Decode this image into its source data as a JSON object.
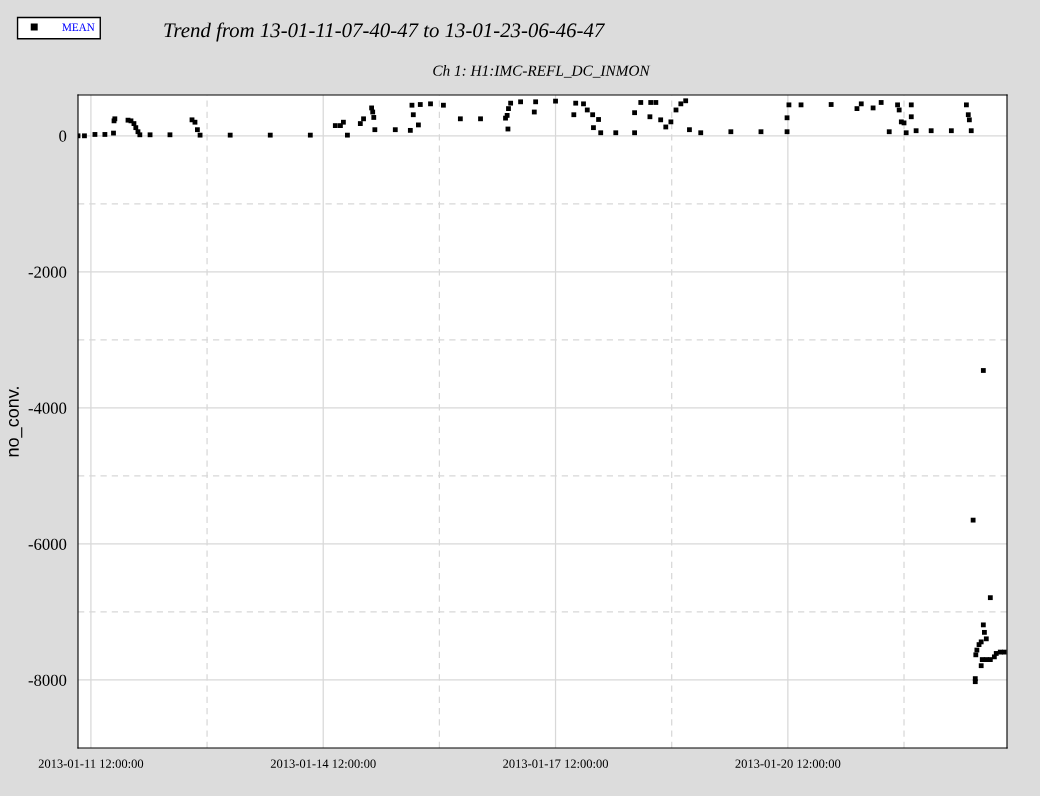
{
  "chart_data": {
    "type": "scatter",
    "title": "Trend from 13-01-11-07-40-47 to 13-01-23-06-46-47",
    "subtitle": "Ch 1: H1:IMC-REFL_DC_INMON",
    "ylabel": "no_conv.",
    "xlim": [
      "2013-01-11T08:00",
      "2013-01-23T07:55"
    ],
    "xticks": [
      {
        "value": "2013-01-11T12:00",
        "label": "2013-01-11 12:00:00"
      },
      {
        "value": "2013-01-13T00:00",
        "label": null
      },
      {
        "value": "2013-01-14T12:00",
        "label": "2013-01-14 12:00:00"
      },
      {
        "value": "2013-01-16T00:00",
        "label": null
      },
      {
        "value": "2013-01-17T12:00",
        "label": "2013-01-17 12:00:00"
      },
      {
        "value": "2013-01-19T00:00",
        "label": null
      },
      {
        "value": "2013-01-20T12:00",
        "label": "2013-01-20 12:00:00"
      },
      {
        "value": "2013-01-22T00:00",
        "label": null
      }
    ],
    "ylim": [
      -9000,
      600
    ],
    "yticks": [
      {
        "value": -8000,
        "label": "-8000"
      },
      {
        "value": -7000,
        "label": null
      },
      {
        "value": -6000,
        "label": "-6000"
      },
      {
        "value": -5000,
        "label": null
      },
      {
        "value": -4000,
        "label": "-4000"
      },
      {
        "value": -3000,
        "label": null
      },
      {
        "value": -2000,
        "label": "-2000"
      },
      {
        "value": -1000,
        "label": null
      },
      0
    ],
    "grid": true,
    "legend": "top left",
    "marker": "square",
    "series": [
      {
        "name": "MEAN",
        "color": "#000000",
        "x": [
          "2013-01-11T08:00",
          "2013-01-11T10:00",
          "2013-01-11T13:15",
          "2013-01-11T16:20",
          "2013-01-11T19:10",
          "2013-01-11T19:25",
          "2013-01-11T19:00",
          "2013-01-11T23:30",
          "2013-01-12T00:25",
          "2013-01-12T01:20",
          "2013-01-12T01:55",
          "2013-01-12T02:35",
          "2013-01-12T03:10",
          "2013-01-12T06:20",
          "2013-01-12T12:30",
          "2013-01-12T19:20",
          "2013-01-12T20:15",
          "2013-01-12T21:00",
          "2013-01-12T21:50",
          "2013-01-13T07:10",
          "2013-01-13T19:35",
          "2013-01-14T08:00",
          "2013-01-14T15:45",
          "2013-01-14T17:20",
          "2013-01-14T18:15",
          "2013-01-14T19:30",
          "2013-01-14T23:30",
          "2013-01-15T00:30",
          "2013-01-15T03:00",
          "2013-01-15T03:20",
          "2013-01-15T03:40",
          "2013-01-15T04:00",
          "2013-01-15T10:20",
          "2013-01-15T15:00",
          "2013-01-15T15:30",
          "2013-01-15T15:55",
          "2013-01-15T17:30",
          "2013-01-15T18:05",
          "2013-01-15T21:15",
          "2013-01-16T01:15",
          "2013-01-16T06:30",
          "2013-01-16T12:45",
          "2013-01-16T20:30",
          "2013-01-16T21:00",
          "2013-01-16T21:15",
          "2013-01-16T21:25",
          "2013-01-16T22:05",
          "2013-01-17T01:10",
          "2013-01-17T05:25",
          "2013-01-17T05:50",
          "2013-01-17T12:00",
          "2013-01-17T17:40",
          "2013-01-17T18:15",
          "2013-01-17T20:40",
          "2013-01-17T21:50",
          "2013-01-17T23:30",
          "2013-01-17T23:45",
          "2013-01-18T01:20",
          "2013-01-18T02:00",
          "2013-01-18T06:40",
          "2013-01-18T12:30",
          "2013-01-18T12:30",
          "2013-01-18T14:25",
          "2013-01-18T17:30",
          "2013-01-18T17:15",
          "2013-01-18T19:05",
          "2013-01-18T20:35",
          "2013-01-18T22:10",
          "2013-01-18T23:45",
          "2013-01-19T01:20",
          "2013-01-19T02:50",
          "2013-01-19T04:20",
          "2013-01-19T05:30",
          "2013-01-19T09:00",
          "2013-01-19T18:20",
          "2013-01-20T03:40",
          "2013-01-20T11:45",
          "2013-01-20T11:45",
          "2013-01-20T12:20",
          "2013-01-20T16:05",
          "2013-01-21T01:25",
          "2013-01-21T10:45",
          "2013-01-21T09:25",
          "2013-01-21T14:25",
          "2013-01-21T16:55",
          "2013-01-21T19:25",
          "2013-01-21T22:00",
          "2013-01-21T22:30",
          "2013-01-21T23:10",
          "2013-01-22T00:00",
          "2013-01-22T00:40",
          "2013-01-22T02:15",
          "2013-01-22T02:15",
          "2013-01-22T03:45",
          "2013-01-22T08:25",
          "2013-01-22T14:40",
          "2013-01-22T19:20",
          "2013-01-22T19:55",
          "2013-01-22T20:15",
          "2013-01-22T20:50",
          "2013-01-22T21:25",
          "2013-01-22T22:05",
          "2013-01-22T22:05",
          "2013-01-22T22:15",
          "2013-01-22T22:35",
          "2013-01-22T23:15",
          "2013-01-22T23:55",
          "2013-01-22T23:55",
          "2013-01-23T00:15",
          "2013-01-23T00:35",
          "2013-01-23T00:35",
          "2013-01-23T00:55",
          "2013-01-23T01:30",
          "2013-01-23T01:30",
          "2013-01-23T02:45",
          "2013-01-23T02:45",
          "2013-01-23T04:00",
          "2013-01-23T04:35",
          "2013-01-23T05:50",
          "2013-01-23T07:05"
        ],
        "values": [
          0,
          0,
          20,
          20,
          220,
          250,
          40,
          230,
          220,
          180,
          120,
          60,
          15,
          15,
          15,
          235,
          200,
          90,
          10,
          10,
          10,
          10,
          150,
          150,
          200,
          10,
          180,
          250,
          410,
          350,
          270,
          90,
          90,
          80,
          450,
          310,
          160,
          460,
          470,
          450,
          250,
          250,
          260,
          300,
          100,
          400,
          480,
          500,
          350,
          500,
          510,
          310,
          480,
          470,
          380,
          310,
          120,
          240,
          45,
          45,
          45,
          340,
          490,
          490,
          280,
          490,
          235,
          130,
          205,
          380,
          470,
          515,
          90,
          45,
          60,
          60,
          265,
          60,
          455,
          455,
          460,
          470,
          400,
          410,
          490,
          60,
          455,
          380,
          205,
          190,
          45,
          455,
          280,
          75,
          75,
          75,
          455,
          310,
          235,
          75,
          -5650,
          -8025,
          -7980,
          -7630,
          -7560,
          -7480,
          -7440,
          -7790,
          -7700,
          -7190,
          -3450,
          -7300,
          -7395,
          -7700,
          -6790,
          -7700,
          -7660,
          -7610,
          -7590,
          -7590
        ]
      }
    ]
  }
}
